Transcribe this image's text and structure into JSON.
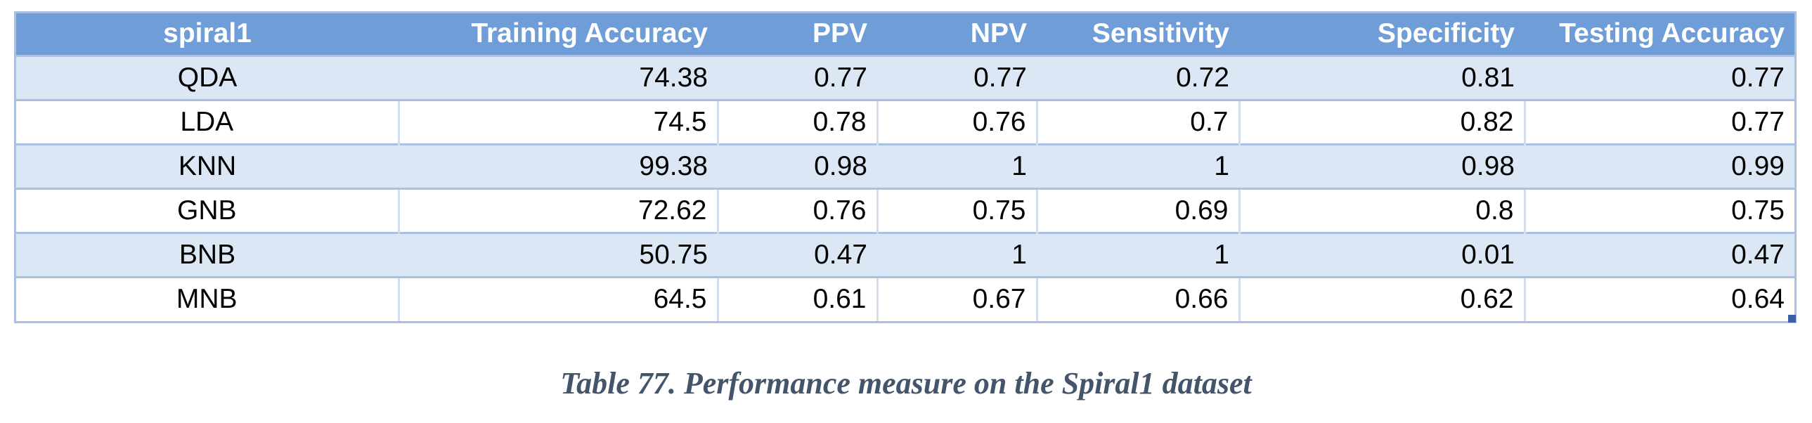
{
  "table": {
    "headers": [
      "spiral1",
      "Training Accuracy",
      "PPV",
      "NPV",
      "Sensitivity",
      "Specificity",
      "Testing Accuracy"
    ],
    "rows": [
      [
        "QDA",
        "74.38",
        "0.77",
        "0.77",
        "0.72",
        "0.81",
        "0.77"
      ],
      [
        "LDA",
        "74.5",
        "0.78",
        "0.76",
        "0.7",
        "0.82",
        "0.77"
      ],
      [
        "KNN",
        "99.38",
        "0.98",
        "1",
        "1",
        "0.98",
        "0.99"
      ],
      [
        "GNB",
        "72.62",
        "0.76",
        "0.75",
        "0.69",
        "0.8",
        "0.75"
      ],
      [
        "BNB",
        "50.75",
        "0.47",
        "1",
        "1",
        "0.01",
        "0.47"
      ],
      [
        "MNB",
        "64.5",
        "0.61",
        "0.67",
        "0.66",
        "0.62",
        "0.64"
      ]
    ]
  },
  "caption": "Table 77. Performance measure on the Spiral1 dataset",
  "colors": {
    "header_bg": "#6f9dd8",
    "band_bg": "#dce7f5",
    "border": "#a9c0e2",
    "caption": "#44546a"
  }
}
